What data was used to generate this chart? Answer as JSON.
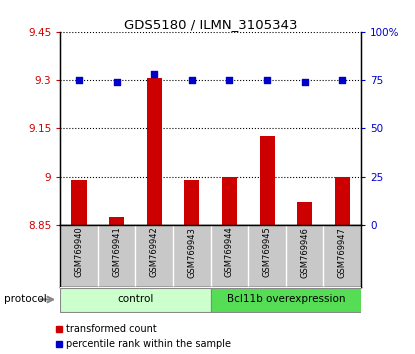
{
  "title": "GDS5180 / ILMN_3105343",
  "samples": [
    "GSM769940",
    "GSM769941",
    "GSM769942",
    "GSM769943",
    "GSM769944",
    "GSM769945",
    "GSM769946",
    "GSM769947"
  ],
  "red_values": [
    8.99,
    8.875,
    9.305,
    8.99,
    9.0,
    9.125,
    8.92,
    9.0
  ],
  "blue_values": [
    75,
    74,
    78,
    75,
    75,
    75,
    74,
    75
  ],
  "ylim_left": [
    8.85,
    9.45
  ],
  "ylim_right": [
    0,
    100
  ],
  "yticks_left": [
    8.85,
    9.0,
    9.15,
    9.3,
    9.45
  ],
  "yticks_right": [
    0,
    25,
    50,
    75,
    100
  ],
  "ytick_labels_left": [
    "8.85",
    "9",
    "9.15",
    "9.3",
    "9.45"
  ],
  "ytick_labels_right": [
    "0",
    "25",
    "50",
    "75",
    "100%"
  ],
  "groups": [
    {
      "label": "control",
      "color": "#ccffcc",
      "indices": [
        0,
        1,
        2,
        3
      ]
    },
    {
      "label": "Bcl11b overexpression",
      "color": "#55dd55",
      "indices": [
        4,
        5,
        6,
        7
      ]
    }
  ],
  "protocol_label": "protocol",
  "bar_color": "#cc0000",
  "dot_color": "#0000cc",
  "bar_width": 0.4,
  "hline_color": "black",
  "background_color": "#ffffff",
  "plot_bg_color": "#ffffff",
  "tick_area_color": "#c8c8c8",
  "legend_red_label": "transformed count",
  "legend_blue_label": "percentile rank within the sample"
}
